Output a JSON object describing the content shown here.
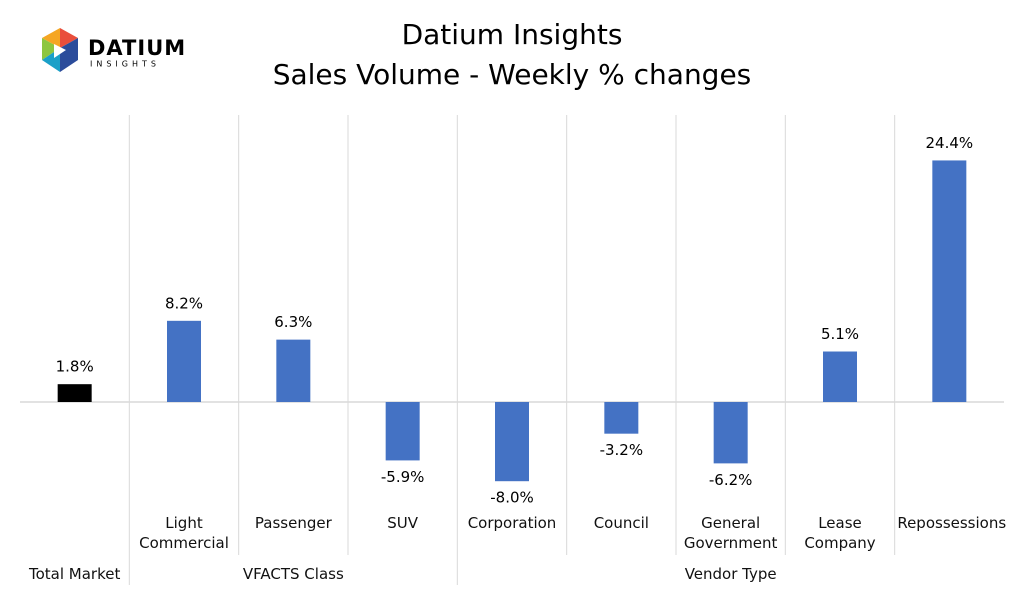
{
  "logo": {
    "name": "DATIUM",
    "tagline": "INSIGHTS"
  },
  "chart_data": {
    "type": "bar",
    "title": "Datium Insights",
    "subtitle": "Sales Volume - Weekly % changes",
    "categories": [
      "",
      "Light Commercial",
      "Passenger",
      "SUV",
      "Corporation",
      "Council",
      "General Government",
      "Lease Company",
      "Repossessions"
    ],
    "values": [
      1.8,
      8.2,
      6.3,
      -5.9,
      -8.0,
      -3.2,
      -6.2,
      5.1,
      24.4
    ],
    "value_labels": [
      "1.8%",
      "8.2%",
      "6.3%",
      "-5.9%",
      "-8.0%",
      "-3.2%",
      "-6.2%",
      "5.1%",
      "24.4%"
    ],
    "colors": [
      "#000000",
      "#4472c4",
      "#4472c4",
      "#4472c4",
      "#4472c4",
      "#4472c4",
      "#4472c4",
      "#4472c4",
      "#4472c4"
    ],
    "groups": [
      {
        "name": "Total Market",
        "size": 1
      },
      {
        "name": "VFACTS Class",
        "size": 3
      },
      {
        "name": "Vendor Type",
        "size": 5
      }
    ],
    "ylim": [
      -10,
      30
    ]
  }
}
